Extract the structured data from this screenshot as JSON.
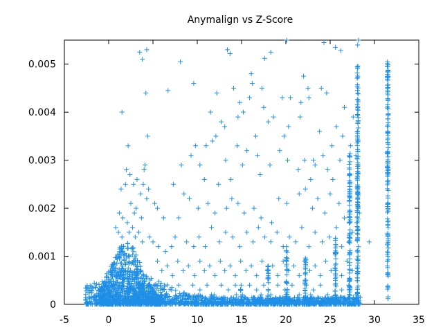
{
  "chart_data": {
    "type": "scatter",
    "title": "Anymalign vs Z-Score",
    "xlabel": "",
    "ylabel": "",
    "xlim": [
      -5,
      35
    ],
    "ylim": [
      0,
      0.0055
    ],
    "x_ticks": [
      -5,
      0,
      5,
      10,
      15,
      20,
      25,
      30,
      35
    ],
    "x_tick_labels": [
      "-5",
      "0",
      "5",
      "10",
      "15",
      "20",
      "25",
      "30",
      "35"
    ],
    "y_ticks": [
      0,
      0.001,
      0.002,
      0.003,
      0.004,
      0.005
    ],
    "y_tick_labels": [
      "0",
      "0.001",
      "0.002",
      "0.003",
      "0.004",
      "0.005"
    ],
    "grid": false,
    "marker": "plus",
    "series": [
      {
        "color": "#1f8fe6",
        "points": [
          [
            1.5,
            0.004
          ],
          [
            2.2,
            0.0033
          ],
          [
            3.5,
            0.00525
          ],
          [
            4.3,
            0.0053
          ],
          [
            3.8,
            0.0051
          ],
          [
            4.2,
            0.0044
          ],
          [
            4.4,
            0.0035
          ],
          [
            6.7,
            0.00445
          ],
          [
            8.1,
            0.00505
          ],
          [
            9.6,
            0.0046
          ],
          [
            13.4,
            0.0053
          ],
          [
            13.7,
            0.00522
          ],
          [
            17.6,
            0.00512
          ],
          [
            18.3,
            0.00525
          ],
          [
            20.1,
            0.0055
          ],
          [
            22.0,
            0.00475
          ],
          [
            22.5,
            0.0045
          ],
          [
            24.3,
            0.00545
          ],
          [
            25.6,
            0.00535
          ],
          [
            26.2,
            0.00528
          ],
          [
            28.1,
            0.0054
          ],
          [
            28.2,
            0.0055
          ],
          [
            16.1,
            0.0048
          ],
          [
            16.2,
            0.0046
          ],
          [
            17.3,
            0.0045
          ],
          [
            14.1,
            0.0045
          ],
          [
            14.8,
            0.0042
          ],
          [
            15.2,
            0.004
          ],
          [
            14.6,
            0.0039
          ],
          [
            12.2,
            0.0044
          ],
          [
            11.5,
            0.004
          ],
          [
            12.7,
            0.0038
          ],
          [
            13.1,
            0.0037
          ],
          [
            15.9,
            0.0043
          ],
          [
            17.5,
            0.0041
          ],
          [
            18.6,
            0.0039
          ],
          [
            19.6,
            0.0043
          ],
          [
            20.5,
            0.0043
          ],
          [
            21.7,
            0.0042
          ],
          [
            22.6,
            0.0043
          ],
          [
            24.0,
            0.0045
          ],
          [
            24.6,
            0.0044
          ],
          [
            26.6,
            0.0041
          ],
          [
            27.6,
            0.0039
          ],
          [
            25.7,
            0.0037
          ],
          [
            23.8,
            0.0036
          ],
          [
            21.6,
            0.0039
          ],
          [
            20.3,
            0.0037
          ],
          [
            18.0,
            0.0038
          ],
          [
            16.6,
            0.0035
          ],
          [
            11.7,
            0.0034
          ],
          [
            12.1,
            0.0035
          ],
          [
            13.2,
            0.003
          ],
          [
            14.5,
            0.0033
          ],
          [
            15.6,
            0.0032
          ],
          [
            16.8,
            0.0031
          ],
          [
            18.2,
            0.0029
          ],
          [
            19.3,
            0.0032
          ],
          [
            20.2,
            0.003
          ],
          [
            21.4,
            0.0028
          ],
          [
            22.1,
            0.003
          ],
          [
            22.8,
            0.0026
          ],
          [
            23.3,
            0.0029
          ],
          [
            24.2,
            0.0031
          ],
          [
            24.7,
            0.0028
          ],
          [
            25.3,
            0.0026
          ],
          [
            26.1,
            0.003
          ],
          [
            27.3,
            0.0033
          ],
          [
            27.9,
            0.0031
          ],
          [
            28.1,
            0.0036
          ],
          [
            26.4,
            0.0035
          ],
          [
            25.2,
            0.0033
          ],
          [
            23.1,
            0.003
          ],
          [
            19.8,
            0.0035
          ],
          [
            17.1,
            0.0027
          ],
          [
            15.1,
            0.0029
          ],
          [
            13.8,
            0.0026
          ],
          [
            12.4,
            0.0025
          ],
          [
            10.8,
            0.0026
          ],
          [
            9.8,
            0.0033
          ],
          [
            9.3,
            0.0031
          ],
          [
            8.2,
            0.0029
          ],
          [
            7.3,
            0.0025
          ],
          [
            10.3,
            0.0029
          ],
          [
            11.0,
            0.0033
          ],
          [
            1.4,
            0.0024
          ],
          [
            1.9,
            0.0025
          ],
          [
            2.0,
            0.0028
          ],
          [
            2.4,
            0.0027
          ],
          [
            2.8,
            0.0025
          ],
          [
            3.2,
            0.0026
          ],
          [
            3.6,
            0.0023
          ],
          [
            4.1,
            0.0029
          ],
          [
            4.0,
            0.0028
          ],
          [
            3.9,
            0.0025
          ],
          [
            4.5,
            0.0024
          ],
          [
            4.3,
            0.0022
          ],
          [
            2.5,
            0.0021
          ],
          [
            2.9,
            0.0019
          ],
          [
            1.2,
            0.0019
          ],
          [
            1.6,
            0.0018
          ],
          [
            2.1,
            0.0017
          ],
          [
            3.1,
            0.002
          ],
          [
            3.7,
            0.0018
          ],
          [
            5.2,
            0.0021
          ],
          [
            5.5,
            0.002
          ],
          [
            6.2,
            0.0018
          ],
          [
            7.9,
            0.0018
          ],
          [
            8.5,
            0.0023
          ],
          [
            9.1,
            0.0022
          ],
          [
            10.1,
            0.002
          ],
          [
            11.2,
            0.0021
          ],
          [
            12.0,
            0.0019
          ],
          [
            13.3,
            0.002
          ],
          [
            13.9,
            0.0022
          ],
          [
            14.6,
            0.0021
          ],
          [
            15.3,
            0.0019
          ],
          [
            16.4,
            0.002
          ],
          [
            17.2,
            0.0018
          ],
          [
            18.4,
            0.0017
          ],
          [
            19.2,
            0.0022
          ],
          [
            20.1,
            0.0021
          ],
          [
            21.5,
            0.0023
          ],
          [
            22.2,
            0.0024
          ],
          [
            23.0,
            0.002
          ],
          [
            23.6,
            0.0022
          ],
          [
            24.4,
            0.0019
          ],
          [
            25.0,
            0.0023
          ],
          [
            26.0,
            0.0021
          ],
          [
            26.6,
            0.0018
          ],
          [
            27.2,
            0.0024
          ],
          [
            28.3,
            0.0019
          ],
          [
            28.0,
            0.0017
          ],
          [
            0.8,
            0.0016
          ],
          [
            1.1,
            0.0015
          ],
          [
            1.5,
            0.0014
          ],
          [
            2.3,
            0.0015
          ],
          [
            2.7,
            0.0016
          ],
          [
            3.0,
            0.0014
          ],
          [
            3.4,
            0.0015
          ],
          [
            3.8,
            0.0013
          ],
          [
            4.6,
            0.0014
          ],
          [
            5.0,
            0.0013
          ],
          [
            5.6,
            0.0012
          ],
          [
            6.4,
            0.0011
          ],
          [
            7.1,
            0.0012
          ],
          [
            7.5,
            0.0014
          ],
          [
            8.8,
            0.0013
          ],
          [
            9.6,
            0.0012
          ],
          [
            10.2,
            0.0014
          ],
          [
            10.9,
            0.0012
          ],
          [
            11.6,
            0.0016
          ],
          [
            12.5,
            0.0013
          ],
          [
            13.2,
            0.0015
          ],
          [
            14.0,
            0.0014
          ],
          [
            14.8,
            0.0012
          ],
          [
            15.6,
            0.0015
          ],
          [
            16.3,
            0.0013
          ],
          [
            16.9,
            0.0016
          ],
          [
            17.6,
            0.0014
          ],
          [
            18.3,
            0.0013
          ],
          [
            19.0,
            0.0015
          ],
          [
            19.7,
            0.0012
          ],
          [
            20.4,
            0.0014
          ],
          [
            21.1,
            0.0013
          ],
          [
            21.8,
            0.0016
          ],
          [
            22.6,
            0.0012
          ],
          [
            23.3,
            0.0015
          ],
          [
            24.1,
            0.0013
          ],
          [
            24.9,
            0.0014
          ],
          [
            25.7,
            0.0016
          ],
          [
            26.3,
            0.0012
          ],
          [
            27.1,
            0.0013
          ],
          [
            28.2,
            0.0012
          ],
          [
            29.4,
            0.0013
          ],
          [
            27.5,
            0.0015
          ],
          [
            5.5,
            0.0009
          ],
          [
            6.0,
            0.0007
          ],
          [
            6.6,
            0.0008
          ],
          [
            7.2,
            0.0006
          ],
          [
            7.8,
            0.0009
          ],
          [
            8.4,
            0.0007
          ],
          [
            9.0,
            0.0008
          ],
          [
            9.7,
            0.0006
          ],
          [
            10.3,
            0.0009
          ],
          [
            10.8,
            0.0007
          ],
          [
            11.4,
            0.0008
          ],
          [
            12.0,
            0.0006
          ],
          [
            12.6,
            0.0009
          ],
          [
            13.1,
            0.0007
          ],
          [
            13.7,
            0.0008
          ],
          [
            14.3,
            0.0006
          ],
          [
            14.9,
            0.0009
          ],
          [
            15.5,
            0.0007
          ],
          [
            16.1,
            0.0008
          ],
          [
            16.7,
            0.0006
          ],
          [
            17.3,
            0.0009
          ],
          [
            17.9,
            0.0007
          ],
          [
            18.5,
            0.0008
          ],
          [
            19.1,
            0.0006
          ],
          [
            19.7,
            0.0009
          ],
          [
            20.3,
            0.0007
          ],
          [
            20.9,
            0.0008
          ],
          [
            21.5,
            0.0006
          ],
          [
            22.1,
            0.0009
          ],
          [
            22.7,
            0.0007
          ],
          [
            23.3,
            0.0008
          ],
          [
            23.9,
            0.0006
          ],
          [
            24.5,
            0.0009
          ],
          [
            25.1,
            0.0007
          ],
          [
            26.3,
            0.0006
          ],
          [
            26.9,
            0.0009
          ],
          [
            27.5,
            0.0007
          ],
          [
            28.1,
            0.0008
          ],
          [
            6.3,
            0.0004
          ],
          [
            7.1,
            0.0003
          ],
          [
            7.9,
            0.0004
          ],
          [
            8.7,
            0.0002
          ],
          [
            9.5,
            0.0004
          ],
          [
            10.3,
            0.0003
          ],
          [
            11.1,
            0.0004
          ],
          [
            11.9,
            0.0002
          ],
          [
            12.7,
            0.0004
          ],
          [
            13.5,
            0.0003
          ],
          [
            14.3,
            0.0004
          ],
          [
            15.1,
            0.0002
          ],
          [
            15.9,
            0.0004
          ],
          [
            16.7,
            0.0003
          ],
          [
            17.5,
            0.0004
          ],
          [
            18.3,
            0.0002
          ],
          [
            19.1,
            0.0004
          ],
          [
            19.9,
            0.0003
          ],
          [
            20.7,
            0.0004
          ],
          [
            21.5,
            0.0002
          ],
          [
            22.3,
            0.0004
          ],
          [
            23.1,
            0.0003
          ],
          [
            23.9,
            0.0004
          ],
          [
            24.7,
            0.0002
          ],
          [
            26.3,
            0.0003
          ],
          [
            27.1,
            0.0004
          ],
          [
            27.9,
            0.0002
          ],
          [
            6.0,
            0.0002
          ],
          [
            7.4,
            0.0001
          ],
          [
            8.8,
            0.0002
          ],
          [
            10.2,
            0.0001
          ],
          [
            11.6,
            0.0002
          ],
          [
            13.0,
            0.0001
          ],
          [
            14.4,
            0.0002
          ],
          [
            15.8,
            0.0001
          ],
          [
            17.2,
            0.0002
          ],
          [
            18.6,
            0.0001
          ],
          [
            20.0,
            0.0002
          ],
          [
            21.4,
            0.0001
          ],
          [
            22.8,
            0.0002
          ],
          [
            24.2,
            0.0001
          ],
          [
            25.6,
            0.0002
          ],
          [
            27.0,
            0.0001
          ]
        ]
      }
    ]
  }
}
